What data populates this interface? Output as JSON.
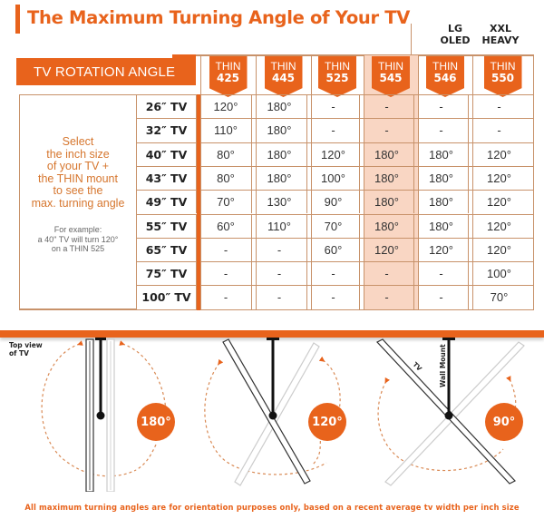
{
  "header": {
    "title": "The Maximum Turning Angle of Your TV",
    "group_lg": [
      "LG",
      "OLED"
    ],
    "group_xxl": [
      "XXL",
      "HEAVY"
    ],
    "rotation_label": "TV ROTATION ANGLE"
  },
  "instructions": {
    "lines": [
      "Select",
      "the inch size",
      "of your TV +",
      "the THIN mount",
      "to see the",
      "max. turning angle"
    ],
    "example_lines": [
      "For example:",
      "a 40\" TV will turn 120°",
      "on a THIN 525"
    ]
  },
  "colors": {
    "accent": "#e8631c",
    "highlight": "#f9d6c3",
    "grid": "#c8926a",
    "instruction_text": "#d6762e"
  },
  "chart_data": {
    "type": "table",
    "title": "The Maximum Turning Angle of Your TV",
    "row_header": "TV ROTATION ANGLE",
    "columns": [
      {
        "line1": "THIN",
        "line2": "425",
        "group": ""
      },
      {
        "line1": "THIN",
        "line2": "445",
        "group": ""
      },
      {
        "line1": "THIN",
        "line2": "525",
        "group": ""
      },
      {
        "line1": "THIN",
        "line2": "545",
        "group": "",
        "highlighted": true
      },
      {
        "line1": "THIN",
        "line2": "546",
        "group": "LG OLED"
      },
      {
        "line1": "THIN",
        "line2": "550",
        "group": "XXL HEAVY"
      }
    ],
    "rows": [
      {
        "size": "26″ TV",
        "values": [
          "120°",
          "180°",
          "-",
          "-",
          "-",
          "-"
        ]
      },
      {
        "size": "32″ TV",
        "values": [
          "110°",
          "180°",
          "-",
          "-",
          "-",
          "-"
        ]
      },
      {
        "size": "40″ TV",
        "values": [
          "80°",
          "180°",
          "120°",
          "180°",
          "180°",
          "120°"
        ]
      },
      {
        "size": "43″ TV",
        "values": [
          "80°",
          "180°",
          "100°",
          "180°",
          "180°",
          "120°"
        ]
      },
      {
        "size": "49″ TV",
        "values": [
          "70°",
          "130°",
          "90°",
          "180°",
          "180°",
          "120°"
        ]
      },
      {
        "size": "55″ TV",
        "values": [
          "60°",
          "110°",
          "70°",
          "180°",
          "180°",
          "120°"
        ]
      },
      {
        "size": "65″ TV",
        "values": [
          "-",
          "-",
          "60°",
          "120°",
          "120°",
          "120°"
        ]
      },
      {
        "size": "75″ TV",
        "values": [
          "-",
          "-",
          "-",
          "-",
          "-",
          "100°"
        ]
      },
      {
        "size": "100″ TV",
        "values": [
          "-",
          "-",
          "-",
          "-",
          "-",
          "70°"
        ]
      }
    ]
  },
  "diagram": {
    "top_view_label": [
      "Top view",
      "of TV"
    ],
    "tv_label": "TV",
    "wall_mount_label": "Wall Mount",
    "angles": [
      "180°",
      "120°",
      "90°"
    ]
  },
  "footer": "All maximum turning angles are for orientation purposes only, based on a recent average tv width per inch size"
}
